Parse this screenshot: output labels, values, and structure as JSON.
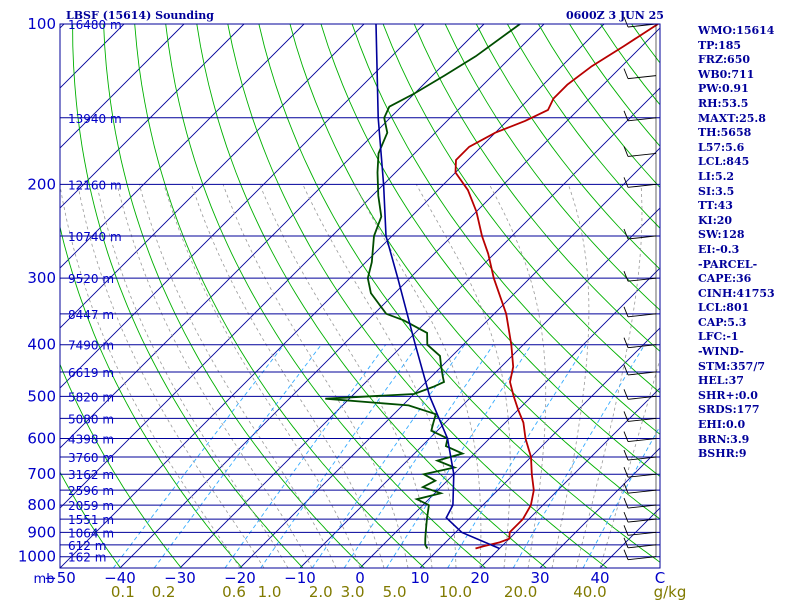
{
  "header": {
    "station": "LBSF (15614) Sounding",
    "time": "0600Z  3 JUN 25"
  },
  "indices": [
    "WMO:15614",
    "TP:185",
    "FRZ:650",
    "WB0:711",
    "PW:0.91",
    "RH:53.5",
    "MAXT:25.8",
    "TH:5658",
    "L57:5.6",
    "LCL:845",
    "LI:5.2",
    "SI:3.5",
    "TT:43",
    "KI:20",
    "SW:128",
    "EI:-0.3",
    "-PARCEL-",
    "CAPE:36",
    "CINH:41753",
    "LCL:801",
    "CAP:5.3",
    "LFC:-1",
    "-WIND-",
    "STM:357/7",
    "HEL:37",
    "SHR+:0.0",
    "SRDS:177",
    "EHI:0.0",
    "BRN:3.9",
    "BSHR:9"
  ],
  "colors": {
    "frame": "#00009a",
    "isobar": "#00009a",
    "isotherm": "#00009a",
    "dry_adiabat": "#00b000",
    "mixing_ratio": "#33aaff",
    "moist_adiabat": "#999999",
    "temperature": "#b80000",
    "dewpoint": "#004d00",
    "parcel": "#00009a",
    "axis_text": "#0000c8",
    "mixing_text": "#807a00",
    "barb": "#000000"
  },
  "chart_data": {
    "type": "line",
    "title": "LBSF (15614) Sounding",
    "xlabel": "C",
    "ylabel": "mb",
    "pressure_scale": "log",
    "pressure_range": [
      1000,
      100
    ],
    "temperature_range_at_base": [
      -50,
      50
    ],
    "pressure_ticks": [
      {
        "p": 1000,
        "label": "1000"
      },
      {
        "p": 900,
        "label": "900"
      },
      {
        "p": 800,
        "label": "800"
      },
      {
        "p": 700,
        "label": "700"
      },
      {
        "p": 600,
        "label": "600"
      },
      {
        "p": 500,
        "label": "500"
      },
      {
        "p": 400,
        "label": "400"
      },
      {
        "p": 300,
        "label": "300"
      },
      {
        "p": 200,
        "label": "200"
      },
      {
        "p": 100,
        "label": "100"
      }
    ],
    "temperature_ticks": [
      {
        "t": -50,
        "label": "−50"
      },
      {
        "t": -40,
        "label": "−40"
      },
      {
        "t": -30,
        "label": "−30"
      },
      {
        "t": -20,
        "label": "−20"
      },
      {
        "t": -10,
        "label": "−10"
      },
      {
        "t": 0,
        "label": "0"
      },
      {
        "t": 10,
        "label": "10"
      },
      {
        "t": 20,
        "label": "20"
      },
      {
        "t": 30,
        "label": "30"
      },
      {
        "t": 40,
        "label": "40"
      }
    ],
    "mb_label": "mb",
    "c_label": "C",
    "gkg_label": "g/kg",
    "mixing_ratio_labels": [
      {
        "w": "0.1",
        "label": "0.1"
      },
      {
        "w": "0.2",
        "label": "0.2"
      },
      {
        "w": "0.6",
        "label": "0.6"
      },
      {
        "w": "1.0",
        "label": "1.0"
      },
      {
        "w": "2.0",
        "label": "2.0"
      },
      {
        "w": "3.0",
        "label": "3.0"
      },
      {
        "w": "5.0",
        "label": "5.0"
      },
      {
        "w": "10.0",
        "label": "10.0"
      },
      {
        "w": "20.0",
        "label": "20.0"
      },
      {
        "w": "40.0",
        "label": "40.0"
      }
    ],
    "height_labels": [
      {
        "p": 100,
        "label": "16480 m"
      },
      {
        "p": 150,
        "label": "13940 m"
      },
      {
        "p": 200,
        "label": "12160 m"
      },
      {
        "p": 250,
        "label": "10740 m"
      },
      {
        "p": 300,
        "label": "9520 m"
      },
      {
        "p": 350,
        "label": "8447 m"
      },
      {
        "p": 400,
        "label": "7490 m"
      },
      {
        "p": 450,
        "label": "6619 m"
      },
      {
        "p": 500,
        "label": "5820 m"
      },
      {
        "p": 550,
        "label": "5080 m"
      },
      {
        "p": 600,
        "label": "4398 m"
      },
      {
        "p": 650,
        "label": "3760 m"
      },
      {
        "p": 700,
        "label": "3162 m"
      },
      {
        "p": 750,
        "label": "2596 m"
      },
      {
        "p": 800,
        "label": "2059 m"
      },
      {
        "p": 850,
        "label": "1551 m"
      },
      {
        "p": 900,
        "label": "1064 m"
      },
      {
        "p": 950,
        "label": "612 m"
      },
      {
        "p": 1000,
        "label": "162 m"
      }
    ],
    "series": [
      {
        "key": "temperature",
        "points": [
          [
            965,
            16
          ],
          [
            955,
            17
          ],
          [
            940,
            19
          ],
          [
            925,
            20
          ],
          [
            900,
            19
          ],
          [
            850,
            19
          ],
          [
            800,
            18
          ],
          [
            750,
            16
          ],
          [
            700,
            13
          ],
          [
            650,
            10
          ],
          [
            600,
            6
          ],
          [
            560,
            3
          ],
          [
            530,
            0
          ],
          [
            500,
            -3
          ],
          [
            470,
            -6
          ],
          [
            440,
            -8
          ],
          [
            400,
            -12
          ],
          [
            350,
            -18
          ],
          [
            300,
            -26
          ],
          [
            270,
            -31
          ],
          [
            250,
            -35
          ],
          [
            225,
            -40
          ],
          [
            205,
            -45
          ],
          [
            190,
            -50
          ],
          [
            180,
            -52
          ],
          [
            170,
            -52
          ],
          [
            160,
            -50
          ],
          [
            152,
            -47
          ],
          [
            145,
            -45
          ],
          [
            138,
            -46
          ],
          [
            130,
            -46
          ],
          [
            120,
            -45
          ],
          [
            110,
            -43
          ],
          [
            100,
            -41
          ]
        ]
      },
      {
        "key": "dewpoint",
        "points": [
          [
            965,
            8
          ],
          [
            950,
            7
          ],
          [
            925,
            6
          ],
          [
            900,
            5
          ],
          [
            850,
            3
          ],
          [
            800,
            1
          ],
          [
            780,
            -2
          ],
          [
            760,
            1
          ],
          [
            740,
            -3
          ],
          [
            720,
            -2
          ],
          [
            700,
            -5
          ],
          [
            680,
            -1
          ],
          [
            660,
            -5
          ],
          [
            640,
            -2
          ],
          [
            620,
            -6
          ],
          [
            600,
            -7
          ],
          [
            580,
            -11
          ],
          [
            560,
            -12
          ],
          [
            540,
            -13
          ],
          [
            520,
            -19
          ],
          [
            505,
            -34
          ],
          [
            495,
            -20
          ],
          [
            480,
            -18
          ],
          [
            470,
            -17
          ],
          [
            460,
            -18
          ],
          [
            440,
            -20
          ],
          [
            420,
            -22
          ],
          [
            400,
            -26
          ],
          [
            380,
            -28
          ],
          [
            360,
            -34
          ],
          [
            350,
            -38
          ],
          [
            320,
            -44
          ],
          [
            300,
            -47
          ],
          [
            280,
            -49
          ],
          [
            250,
            -53
          ],
          [
            230,
            -55
          ],
          [
            210,
            -59
          ],
          [
            190,
            -63
          ],
          [
            175,
            -66
          ],
          [
            160,
            -68
          ],
          [
            150,
            -71
          ],
          [
            143,
            -72
          ],
          [
            135,
            -70
          ],
          [
            125,
            -68
          ],
          [
            115,
            -66
          ],
          [
            100,
            -64
          ]
        ]
      },
      {
        "key": "parcel",
        "points": [
          [
            965,
            20
          ],
          [
            900,
            11
          ],
          [
            845,
            6
          ],
          [
            800,
            5
          ],
          [
            700,
            0
          ],
          [
            600,
            -7
          ],
          [
            500,
            -17
          ],
          [
            400,
            -28
          ],
          [
            300,
            -42
          ],
          [
            250,
            -51
          ],
          [
            200,
            -60
          ],
          [
            150,
            -72
          ],
          [
            100,
            -88
          ]
        ]
      }
    ],
    "wind_barbs_pressure": [
      1000,
      950,
      900,
      850,
      800,
      750,
      700,
      650,
      600,
      550,
      500,
      450,
      400,
      350,
      300,
      250,
      200,
      175,
      150,
      125,
      100
    ]
  }
}
